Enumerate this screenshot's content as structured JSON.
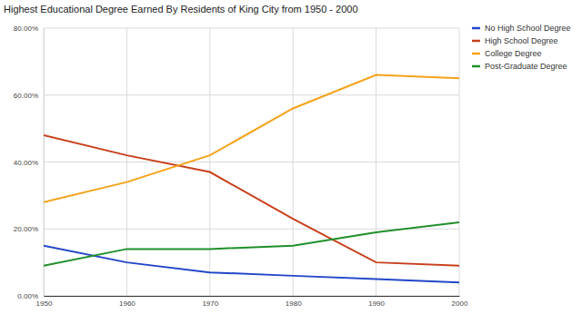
{
  "chart_data": {
    "type": "line",
    "title": "Highest Educational Degree Earned By Residents of King City from 1950 - 2000",
    "x": [
      1950,
      1960,
      1970,
      1980,
      1990,
      2000
    ],
    "series": [
      {
        "name": "No High School Degree",
        "color": "#2346c9",
        "values": [
          15,
          10,
          7,
          6,
          5,
          4
        ]
      },
      {
        "name": "High School Degree",
        "color": "#c8401c",
        "values": [
          48,
          42,
          37,
          23,
          10,
          9
        ]
      },
      {
        "name": "College Degree",
        "color": "#f4a31a",
        "values": [
          28,
          34,
          42,
          56,
          66,
          65
        ]
      },
      {
        "name": "Post-Graduate Degree",
        "color": "#1f8f2a",
        "values": [
          9,
          14,
          14,
          15,
          19,
          22
        ]
      }
    ],
    "xlim": [
      1950,
      2000
    ],
    "xticks": [
      1950,
      1960,
      1970,
      1980,
      1990,
      2000
    ],
    "ylim": [
      0,
      80
    ],
    "yticks": [
      {
        "value": 0,
        "label": "0.00%"
      },
      {
        "value": 20,
        "label": "20.00%"
      },
      {
        "value": 40,
        "label": "40.00%"
      },
      {
        "value": 60,
        "label": "60.00%"
      },
      {
        "value": 80,
        "label": "80.00%"
      }
    ],
    "grid": true,
    "legend": "right"
  }
}
